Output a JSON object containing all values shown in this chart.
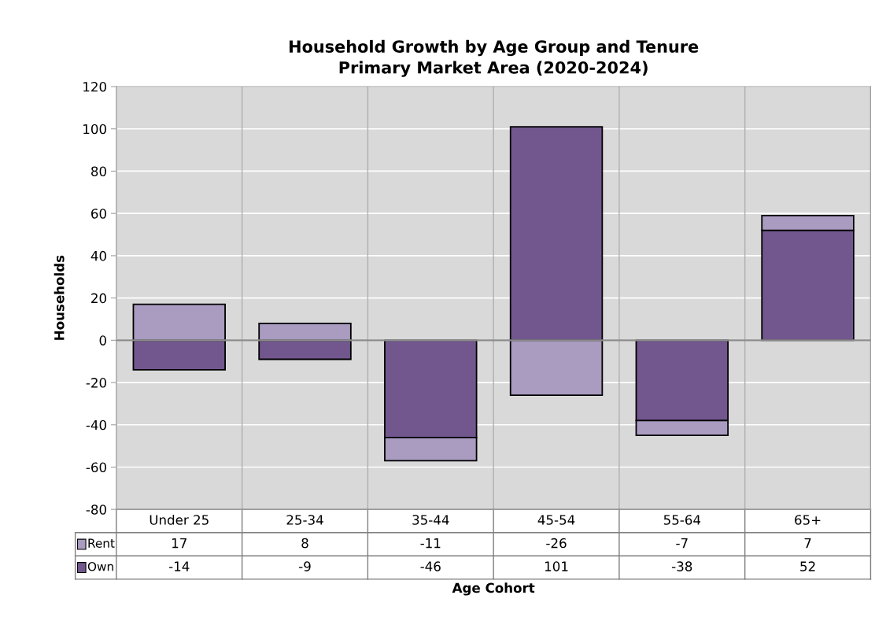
{
  "chart_data": {
    "type": "bar",
    "title": "Household Growth by Age Group and Tenure\nPrimary Market Area (2020-2024)",
    "xlabel": "Age Cohort",
    "ylabel": "Households",
    "categories": [
      "Under 25",
      "25-34",
      "35-44",
      "45-54",
      "55-64",
      "65+"
    ],
    "series": [
      {
        "name": "Own",
        "color": "#72578f",
        "values": [
          -14,
          -9,
          -46,
          101,
          -38,
          52
        ]
      },
      {
        "name": "Rent",
        "color": "#aa9bc1",
        "values": [
          17,
          8,
          -11,
          -26,
          -7,
          7
        ]
      }
    ],
    "stacked": true,
    "ylim": [
      -80,
      120
    ],
    "yticks": [
      -80,
      -60,
      -40,
      -20,
      0,
      20,
      40,
      60,
      80,
      100,
      120
    ],
    "grid": true,
    "data_labels": true,
    "legend": "bottom left"
  }
}
